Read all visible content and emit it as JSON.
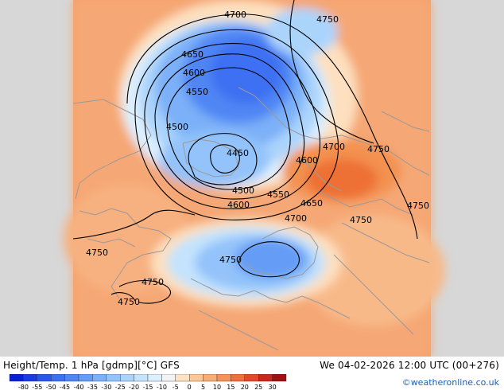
{
  "title": "Height/Temp. 1 hPa [gdmp][°C] GFS",
  "timestamp": "We 04-02-2026 12:00 UTC (00+276)",
  "credit": "©weatheronline.co.uk",
  "legend": {
    "ticks": [
      "-80",
      "-55",
      "-50",
      "-45",
      "-40",
      "-35",
      "-30",
      "-25",
      "-20",
      "-15",
      "-10",
      "-5",
      "0",
      "5",
      "10",
      "15",
      "20",
      "25",
      "30"
    ],
    "colors": [
      "#0a1fd8",
      "#1a3ae6",
      "#2b55ee",
      "#3c6ff2",
      "#4f86f4",
      "#659cf6",
      "#7cb0f8",
      "#93c3fa",
      "#abd4fb",
      "#c4e3fc",
      "#dcefff",
      "#f3f3f3",
      "#fde3c2",
      "#fcc89a",
      "#f9ad76",
      "#f6915a",
      "#f06f3c",
      "#e4482a",
      "#c9261d",
      "#9f1010"
    ]
  },
  "contours": {
    "l4700a": "4700",
    "l4750a": "4750",
    "l4650": "4650",
    "l4600a": "4600",
    "l4550a": "4550",
    "l4500a": "4500",
    "l4450": "4450",
    "l4700b": "4700",
    "l4750b": "4750",
    "l4600b": "4600",
    "l4500b": "4500",
    "l4550b": "4550",
    "l4600c": "4600",
    "l4650b": "4650",
    "l4700c": "4700",
    "l4750c": "4750",
    "l4750d": "4750",
    "l4750e": "4750",
    "l4750f": "4750",
    "l4750g": "4750",
    "l4750h": "4750"
  }
}
